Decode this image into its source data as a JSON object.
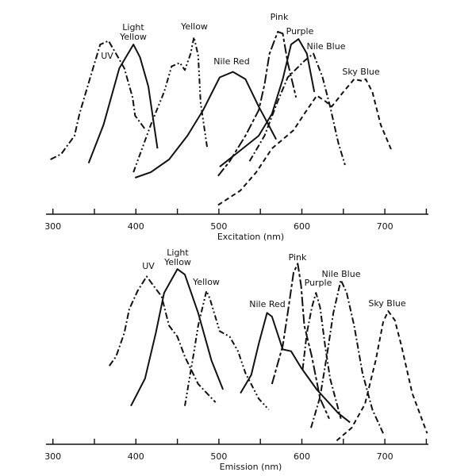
{
  "chart_data": [
    {
      "type": "line",
      "xlabel": "Excitation (nm)",
      "ylabel": "",
      "xlim": [
        290,
        750
      ],
      "ylim": [
        0,
        1
      ],
      "xticks": [
        300,
        400,
        500,
        600,
        700
      ],
      "minor_xticks": [
        350,
        450,
        550,
        650,
        750
      ],
      "grid": false,
      "series": [
        {
          "name": "UV",
          "style": "dash-dot",
          "points": [
            [
              297,
              0.3
            ],
            [
              310,
              0.33
            ],
            [
              326,
              0.43
            ],
            [
              332,
              0.55
            ],
            [
              345,
              0.75
            ],
            [
              357,
              0.93
            ],
            [
              367,
              0.95
            ],
            [
              376,
              0.88
            ],
            [
              386,
              0.8
            ],
            [
              396,
              0.64
            ],
            [
              399,
              0.54
            ],
            [
              412,
              0.46
            ]
          ]
        },
        {
          "name": "Light Yellow",
          "style": "solid",
          "points": [
            [
              343,
              0.28
            ],
            [
              361,
              0.49
            ],
            [
              380,
              0.8
            ],
            [
              397,
              0.93
            ],
            [
              405,
              0.86
            ],
            [
              415,
              0.7
            ],
            [
              426,
              0.36
            ]
          ]
        },
        {
          "name": "Yellow",
          "style": "dash-dot-dot",
          "points": [
            [
              397,
              0.23
            ],
            [
              418,
              0.49
            ],
            [
              434,
              0.67
            ],
            [
              443,
              0.81
            ],
            [
              453,
              0.83
            ],
            [
              459,
              0.79
            ],
            [
              466,
              0.88
            ],
            [
              470,
              0.97
            ],
            [
              475,
              0.87
            ],
            [
              478,
              0.61
            ],
            [
              486,
              0.36
            ]
          ]
        },
        {
          "name": "Nile Red",
          "style": "solid",
          "points": [
            [
              399,
              0.2
            ],
            [
              418,
              0.23
            ],
            [
              440,
              0.3
            ],
            [
              462,
              0.43
            ],
            [
              481,
              0.57
            ],
            [
              501,
              0.75
            ],
            [
              517,
              0.78
            ],
            [
              532,
              0.74
            ],
            [
              548,
              0.59
            ],
            [
              561,
              0.48
            ],
            [
              569,
              0.41
            ]
          ]
        },
        {
          "name": "Pink",
          "style": "long-dash-short",
          "points": [
            [
              499,
              0.21
            ],
            [
              513,
              0.29
            ],
            [
              532,
              0.43
            ],
            [
              548,
              0.57
            ],
            [
              555,
              0.71
            ],
            [
              561,
              0.88
            ],
            [
              571,
              1.0
            ],
            [
              577,
              0.99
            ],
            [
              583,
              0.83
            ],
            [
              593,
              0.64
            ]
          ]
        },
        {
          "name": "Purple",
          "style": "solid",
          "points": [
            [
              501,
              0.26
            ],
            [
              526,
              0.35
            ],
            [
              548,
              0.43
            ],
            [
              564,
              0.55
            ],
            [
              577,
              0.74
            ],
            [
              587,
              0.93
            ],
            [
              596,
              0.96
            ],
            [
              606,
              0.88
            ],
            [
              615,
              0.67
            ]
          ]
        },
        {
          "name": "Nile Blue",
          "style": "dash-dot",
          "points": [
            [
              537,
              0.29
            ],
            [
              555,
              0.43
            ],
            [
              571,
              0.62
            ],
            [
              583,
              0.75
            ],
            [
              603,
              0.84
            ],
            [
              614,
              0.88
            ],
            [
              625,
              0.75
            ],
            [
              634,
              0.59
            ],
            [
              644,
              0.39
            ],
            [
              652,
              0.27
            ]
          ]
        },
        {
          "name": "Sky Blue",
          "style": "dashed",
          "points": [
            [
              499,
              0.05
            ],
            [
              526,
              0.13
            ],
            [
              545,
              0.23
            ],
            [
              564,
              0.36
            ],
            [
              590,
              0.46
            ],
            [
              603,
              0.55
            ],
            [
              618,
              0.65
            ],
            [
              628,
              0.62
            ],
            [
              636,
              0.59
            ],
            [
              650,
              0.67
            ],
            [
              663,
              0.74
            ],
            [
              673,
              0.73
            ],
            [
              677,
              0.74
            ],
            [
              685,
              0.67
            ],
            [
              695,
              0.49
            ],
            [
              708,
              0.35
            ]
          ]
        }
      ]
    },
    {
      "type": "line",
      "xlabel": "Emission (nm)",
      "ylabel": "",
      "xlim": [
        290,
        750
      ],
      "ylim": [
        0,
        1
      ],
      "xticks": [
        300,
        400,
        500,
        600,
        700
      ],
      "minor_xticks": [
        350,
        450,
        550,
        650,
        750
      ],
      "grid": false,
      "series": [
        {
          "name": "UV",
          "style": "dash-dot",
          "points": [
            [
              368,
              0.43
            ],
            [
              376,
              0.48
            ],
            [
              386,
              0.61
            ],
            [
              392,
              0.74
            ],
            [
              402,
              0.84
            ],
            [
              413,
              0.92
            ],
            [
              421,
              0.87
            ],
            [
              431,
              0.81
            ],
            [
              440,
              0.65
            ],
            [
              450,
              0.59
            ],
            [
              459,
              0.48
            ],
            [
              475,
              0.33
            ],
            [
              496,
              0.23
            ]
          ]
        },
        {
          "name": "Light Yellow",
          "style": "solid",
          "points": [
            [
              394,
              0.21
            ],
            [
              411,
              0.36
            ],
            [
              424,
              0.61
            ],
            [
              434,
              0.83
            ],
            [
              450,
              0.96
            ],
            [
              459,
              0.93
            ],
            [
              475,
              0.72
            ],
            [
              491,
              0.46
            ],
            [
              505,
              0.3
            ]
          ]
        },
        {
          "name": "Yellow",
          "style": "dash-dot-dot",
          "points": [
            [
              459,
              0.21
            ],
            [
              469,
              0.48
            ],
            [
              475,
              0.65
            ],
            [
              485,
              0.84
            ],
            [
              489,
              0.8
            ],
            [
              501,
              0.62
            ],
            [
              513,
              0.59
            ],
            [
              523,
              0.51
            ],
            [
              532,
              0.39
            ],
            [
              548,
              0.25
            ],
            [
              560,
              0.19
            ]
          ]
        },
        {
          "name": "Nile Red",
          "style": "solid",
          "points": [
            [
              526,
              0.28
            ],
            [
              539,
              0.38
            ],
            [
              548,
              0.55
            ],
            [
              558,
              0.72
            ],
            [
              564,
              0.7
            ],
            [
              577,
              0.52
            ],
            [
              587,
              0.51
            ],
            [
              599,
              0.42
            ],
            [
              618,
              0.3
            ],
            [
              644,
              0.17
            ],
            [
              658,
              0.12
            ]
          ]
        },
        {
          "name": "Pink",
          "style": "long-dash-short",
          "points": [
            [
              564,
              0.33
            ],
            [
              577,
              0.54
            ],
            [
              583,
              0.72
            ],
            [
              590,
              0.94
            ],
            [
              595,
              0.99
            ],
            [
              599,
              0.87
            ],
            [
              603,
              0.65
            ],
            [
              612,
              0.48
            ],
            [
              622,
              0.25
            ],
            [
              633,
              0.14
            ]
          ]
        },
        {
          "name": "Purple",
          "style": "dash-dot",
          "points": [
            [
              601,
              0.41
            ],
            [
              606,
              0.61
            ],
            [
              612,
              0.75
            ],
            [
              617,
              0.83
            ],
            [
              622,
              0.75
            ],
            [
              628,
              0.54
            ],
            [
              634,
              0.36
            ],
            [
              647,
              0.14
            ]
          ]
        },
        {
          "name": "Nile Blue",
          "style": "dash-dot",
          "points": [
            [
              611,
              0.09
            ],
            [
              622,
              0.26
            ],
            [
              631,
              0.51
            ],
            [
              638,
              0.72
            ],
            [
              647,
              0.9
            ],
            [
              654,
              0.83
            ],
            [
              663,
              0.65
            ],
            [
              673,
              0.39
            ],
            [
              685,
              0.19
            ],
            [
              698,
              0.06
            ]
          ]
        },
        {
          "name": "Sky Blue",
          "style": "dashed",
          "points": [
            [
              642,
              0.02
            ],
            [
              660,
              0.09
            ],
            [
              676,
              0.22
            ],
            [
              689,
              0.46
            ],
            [
              698,
              0.67
            ],
            [
              704,
              0.73
            ],
            [
              712,
              0.68
            ],
            [
              720,
              0.54
            ],
            [
              733,
              0.28
            ],
            [
              751,
              0.06
            ]
          ]
        }
      ]
    }
  ]
}
